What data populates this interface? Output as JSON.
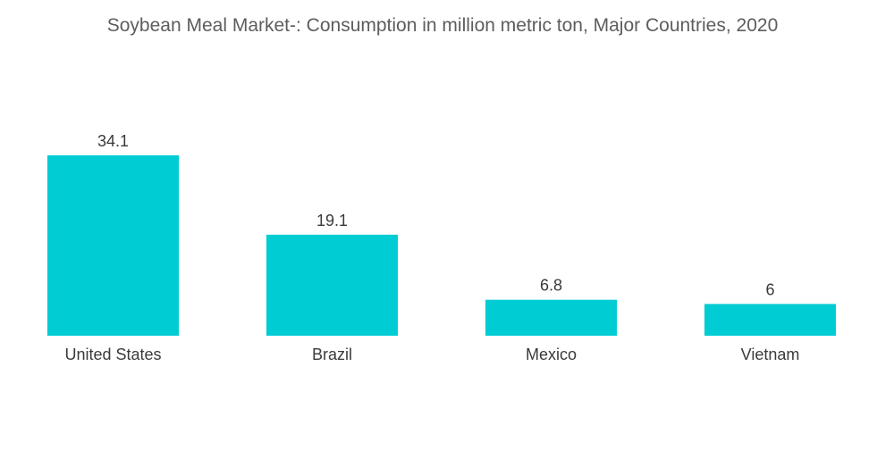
{
  "chart_data": {
    "type": "bar",
    "title": "Soybean Meal Market-:  Consumption in million metric ton, Major Countries, 2020",
    "categories": [
      "United States",
      "Brazil",
      "Mexico",
      "Vietnam"
    ],
    "values": [
      34.1,
      19.1,
      6.8,
      6
    ],
    "value_labels": [
      "34.1",
      "19.1",
      "6.8",
      "6"
    ],
    "xlabel": "",
    "ylabel": "",
    "ylim": [
      0,
      34.1
    ],
    "grid": false,
    "legend": "none",
    "bar_color": "#00CCD3"
  }
}
